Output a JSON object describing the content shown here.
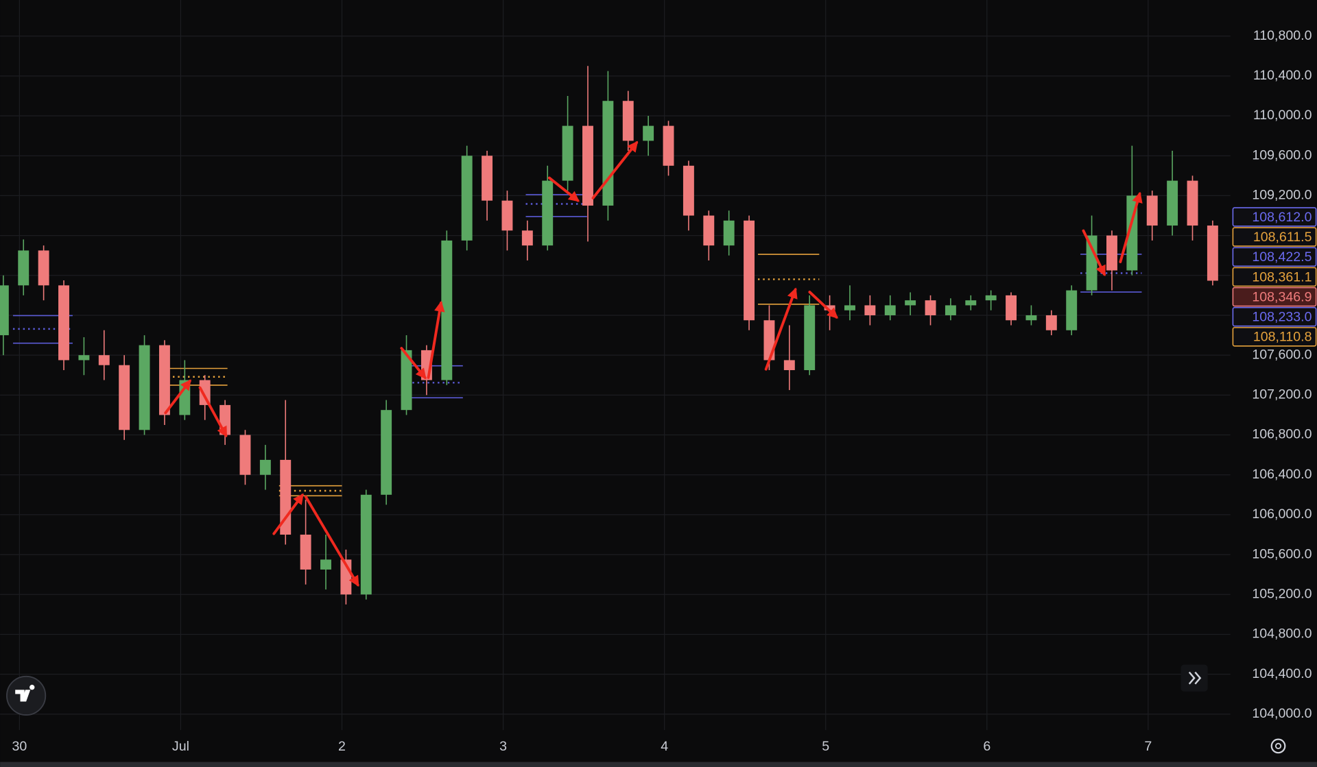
{
  "chart_data": {
    "type": "candlestick",
    "up_color": "#5ba862",
    "down_color": "#ef7b7b",
    "grid": true,
    "xlim": [
      -0.12,
      7.51
    ],
    "ylim": [
      103840,
      111162
    ],
    "xticks": [
      {
        "value": 0,
        "label": "30"
      },
      {
        "value": 1,
        "label": "Jul"
      },
      2,
      3,
      4,
      5,
      6,
      7
    ],
    "yticks": [
      {
        "value": 104000,
        "label": "104,000.0"
      },
      {
        "value": 104400,
        "label": "104,400.0"
      },
      {
        "value": 104800,
        "label": "104,800.0"
      },
      {
        "value": 105200,
        "label": "105,200.0"
      },
      {
        "value": 105600,
        "label": "105,600.0"
      },
      {
        "value": 106000,
        "label": "106,000.0"
      },
      {
        "value": 106400,
        "label": "106,400.0"
      },
      {
        "value": 106800,
        "label": "106,800.0"
      },
      {
        "value": 107200,
        "label": "107,200.0"
      },
      {
        "value": 107600,
        "label": "107,600.0"
      },
      {
        "value": 108000,
        "label": "108,000.0"
      },
      {
        "value": 108400,
        "label": "108,400.0"
      },
      {
        "value": 108800,
        "label": "108,800.0"
      },
      {
        "value": 109200,
        "label": "109,200.0"
      },
      {
        "value": 109600,
        "label": "109,600.0"
      },
      {
        "value": 110000,
        "label": "110,000.0"
      },
      {
        "value": 110400,
        "label": "110,400.0"
      },
      {
        "value": 110800,
        "label": "110,800.0"
      }
    ],
    "x": [
      -0.1,
      0.025,
      0.15,
      0.275,
      0.4,
      0.525,
      0.65,
      0.775,
      0.9,
      1.025,
      1.15,
      1.275,
      1.4,
      1.525,
      1.65,
      1.775,
      1.9,
      2.025,
      2.15,
      2.275,
      2.4,
      2.525,
      2.65,
      2.775,
      2.9,
      3.025,
      3.15,
      3.275,
      3.4,
      3.525,
      3.65,
      3.775,
      3.9,
      4.025,
      4.15,
      4.275,
      4.4,
      4.525,
      4.65,
      4.775,
      4.9,
      5.025,
      5.15,
      5.275,
      5.4,
      5.525,
      5.65,
      5.775,
      5.9,
      6.025,
      6.15,
      6.275,
      6.4,
      6.525,
      6.65,
      6.775,
      6.9,
      7.025,
      7.15,
      7.275,
      7.4
    ],
    "open": [
      107800,
      108300,
      108650,
      108300,
      107550,
      107600,
      107500,
      106850,
      107700,
      107000,
      107350,
      107100,
      106800,
      106400,
      106550,
      105800,
      105450,
      105550,
      105200,
      106200,
      107050,
      107650,
      107350,
      108750,
      109600,
      109150,
      108850,
      108700,
      109350,
      109900,
      109100,
      110150,
      109750,
      109900,
      109500,
      109000,
      108700,
      108950,
      107950,
      107550,
      107450,
      108100,
      108050,
      108100,
      108000,
      108100,
      108150,
      108000,
      108100,
      108150,
      108200,
      107950,
      108000,
      107850,
      108250,
      108800,
      108450,
      109200,
      108900,
      109350,
      108900
    ],
    "high": [
      108400,
      108760,
      108700,
      108350,
      107780,
      107850,
      107600,
      107800,
      107750,
      107550,
      107400,
      107150,
      106850,
      106700,
      107150,
      106150,
      105800,
      105650,
      106250,
      107150,
      107800,
      107700,
      108850,
      109700,
      109650,
      109250,
      108950,
      109500,
      110200,
      110500,
      110450,
      110250,
      110000,
      109950,
      109550,
      109050,
      109050,
      109000,
      108100,
      107900,
      108200,
      108200,
      108300,
      108200,
      108200,
      108230,
      108200,
      108170,
      108200,
      108250,
      108230,
      108100,
      108050,
      108300,
      109000,
      108850,
      109700,
      109250,
      109650,
      109400,
      108950
    ],
    "low": [
      107600,
      108200,
      108150,
      107450,
      107400,
      107350,
      106750,
      106800,
      106900,
      106950,
      106950,
      106700,
      106300,
      106250,
      105700,
      105300,
      105250,
      105100,
      105150,
      106100,
      107000,
      107200,
      107300,
      108650,
      108950,
      108650,
      108550,
      108650,
      109250,
      108740,
      108950,
      109650,
      109600,
      109400,
      108850,
      108550,
      108600,
      107850,
      107450,
      107250,
      107400,
      107850,
      107950,
      107900,
      107950,
      108000,
      107900,
      107950,
      108050,
      108050,
      107900,
      107900,
      107800,
      107800,
      108200,
      108250,
      108400,
      108750,
      108800,
      108750,
      108300
    ],
    "close": [
      108300,
      108650,
      108300,
      107550,
      107600,
      107500,
      106850,
      107700,
      107000,
      107350,
      107100,
      106800,
      106400,
      106550,
      105800,
      105450,
      105550,
      105200,
      106200,
      107050,
      107650,
      107350,
      108750,
      109600,
      109150,
      108850,
      108700,
      109350,
      109900,
      109100,
      110150,
      109750,
      109900,
      109500,
      109000,
      108700,
      108950,
      107950,
      107550,
      107450,
      108100,
      108050,
      108100,
      108000,
      108100,
      108150,
      108000,
      108100,
      108150,
      108200,
      107950,
      108000,
      107850,
      108250,
      108800,
      108450,
      109200,
      108900,
      109350,
      108900,
      108346.9
    ],
    "levels": [
      {
        "x": [
          -0.04,
          0.33
        ],
        "y": 107997,
        "color": "#5b5bd6",
        "style": "solid"
      },
      {
        "x": [
          -0.04,
          0.33
        ],
        "y": 107863,
        "color": "#5b5bd6",
        "style": "dotted"
      },
      {
        "x": [
          -0.04,
          0.33
        ],
        "y": 107720,
        "color": "#5b5bd6",
        "style": "solid"
      },
      {
        "x": [
          0.92,
          1.29
        ],
        "y": 107467,
        "color": "#e6a23c",
        "style": "solid"
      },
      {
        "x": [
          0.92,
          1.29
        ],
        "y": 107383,
        "color": "#e6a23c",
        "style": "dotted"
      },
      {
        "x": [
          0.92,
          1.29
        ],
        "y": 107299,
        "color": "#e6a23c",
        "style": "solid"
      },
      {
        "x": [
          1.61,
          2.0
        ],
        "y": 106290,
        "color": "#e6a23c",
        "style": "solid"
      },
      {
        "x": [
          1.61,
          2.0
        ],
        "y": 106240,
        "color": "#e6a23c",
        "style": "dotted"
      },
      {
        "x": [
          1.61,
          2.0
        ],
        "y": 106190,
        "color": "#e6a23c",
        "style": "solid"
      },
      {
        "x": [
          2.375,
          2.75
        ],
        "y": 107493,
        "color": "#5b5bd6",
        "style": "solid"
      },
      {
        "x": [
          2.375,
          2.75
        ],
        "y": 107324,
        "color": "#5b5bd6",
        "style": "dotted"
      },
      {
        "x": [
          2.375,
          2.75
        ],
        "y": 107173,
        "color": "#5b5bd6",
        "style": "solid"
      },
      {
        "x": [
          3.14,
          3.52
        ],
        "y": 109210,
        "color": "#5b5bd6",
        "style": "solid"
      },
      {
        "x": [
          3.14,
          3.52
        ],
        "y": 109117,
        "color": "#5b5bd6",
        "style": "dotted"
      },
      {
        "x": [
          3.14,
          3.52
        ],
        "y": 108990,
        "color": "#5b5bd6",
        "style": "solid"
      },
      {
        "x": [
          4.58,
          4.96
        ],
        "y": 108611.5,
        "color": "#e6a23c",
        "style": "solid"
      },
      {
        "x": [
          4.58,
          4.96
        ],
        "y": 108361.1,
        "color": "#e6a23c",
        "style": "dotted"
      },
      {
        "x": [
          4.58,
          4.96
        ],
        "y": 108110.8,
        "color": "#e6a23c",
        "style": "solid"
      },
      {
        "x": [
          6.58,
          6.96
        ],
        "y": 108612,
        "color": "#5b5bd6",
        "style": "solid"
      },
      {
        "x": [
          6.58,
          6.96
        ],
        "y": 108422.5,
        "color": "#5b5bd6",
        "style": "dotted"
      },
      {
        "x": [
          6.58,
          6.96
        ],
        "y": 108233,
        "color": "#5b5bd6",
        "style": "solid"
      }
    ],
    "price_labels": [
      {
        "value": 108612,
        "label": "108,612.0",
        "color": "#6b6bf0"
      },
      {
        "value": 108611.5,
        "label": "108,611.5",
        "color": "#e6a23c"
      },
      {
        "value": 108422.5,
        "label": "108,422.5",
        "color": "#6b6bf0"
      },
      {
        "value": 108361.1,
        "label": "108,361.1",
        "color": "#e6a23c"
      },
      {
        "value": 108346.9,
        "label": "108,346.9",
        "color": "#ef7b7b"
      },
      {
        "value": 108233,
        "label": "108,233.0",
        "color": "#6b6bf0"
      },
      {
        "value": 108110.8,
        "label": "108,110.8",
        "color": "#e6a23c"
      }
    ]
  }
}
